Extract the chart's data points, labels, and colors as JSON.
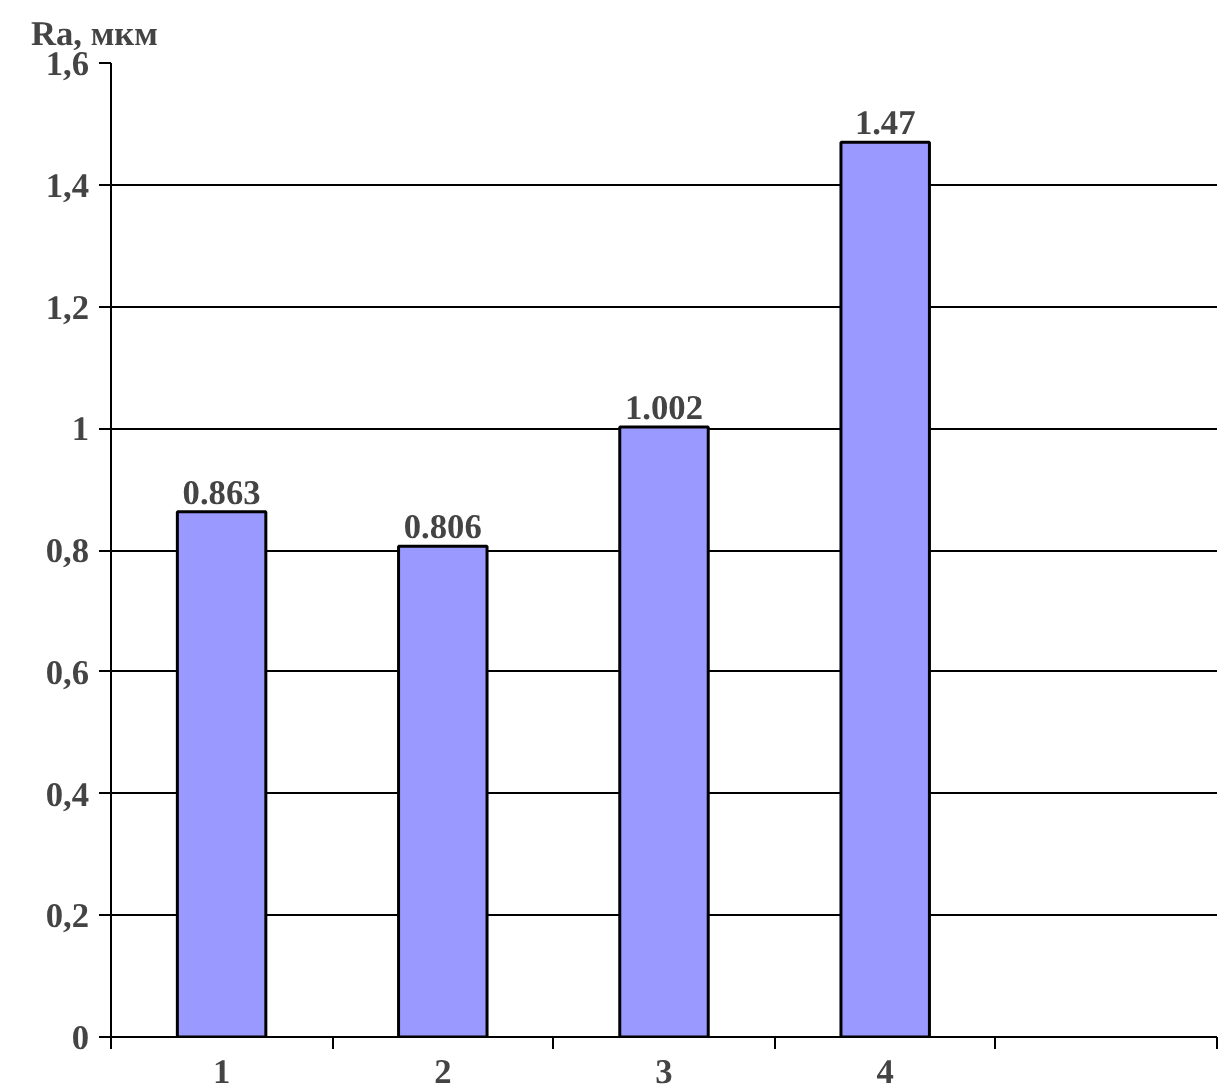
{
  "chart_data": {
    "type": "bar",
    "ylabel": "Ra, мкм",
    "categories": [
      "1",
      "2",
      "3",
      "4",
      null
    ],
    "values": [
      0.863,
      0.806,
      1.002,
      1.47,
      null
    ],
    "color": "#9999ff",
    "data_labels": true,
    "grid": "y",
    "ylim": [
      0,
      1.6
    ],
    "yticks": [
      0,
      {
        "value": 0.2,
        "label": "0,2"
      },
      {
        "value": 0.4,
        "label": "0,4"
      },
      {
        "value": 0.6,
        "label": "0,6"
      },
      {
        "value": 0.8,
        "label": "0,8"
      },
      1,
      {
        "value": 1.2,
        "label": "1,2"
      },
      {
        "value": 1.4,
        "label": "1,4"
      },
      {
        "value": 1.6,
        "label": "1,6"
      }
    ]
  }
}
